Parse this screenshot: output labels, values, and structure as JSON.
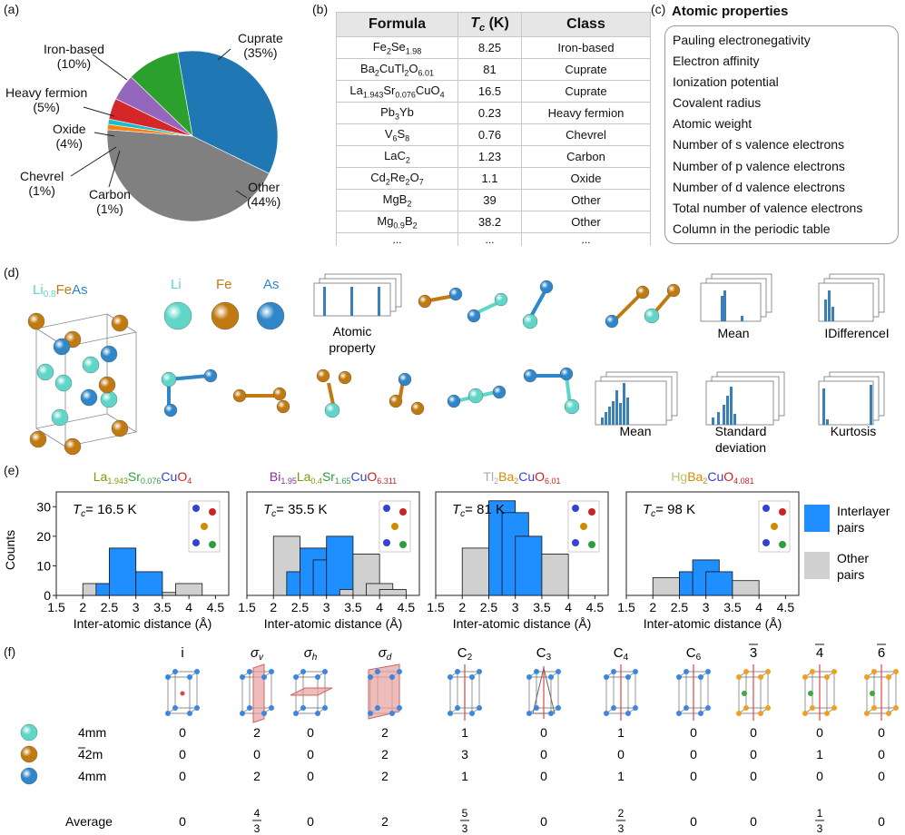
{
  "panels": {
    "a": "(a)",
    "b": "(b)",
    "c": "(c)",
    "d": "(d)",
    "e": "(e)",
    "f": "(f)"
  },
  "chart_data": [
    {
      "type": "pie",
      "title": "",
      "slices": [
        {
          "label": "Cuprate",
          "pct_text": "(35%)",
          "value": 35,
          "color": "#1f77b4"
        },
        {
          "label": "Other",
          "pct_text": "(44%)",
          "value": 44,
          "color": "#808080"
        },
        {
          "label": "Carbon",
          "pct_text": "(1%)",
          "value": 1,
          "color": "#ff7f0e"
        },
        {
          "label": "Chevrel",
          "pct_text": "(1%)",
          "value": 1,
          "color": "#17becf"
        },
        {
          "label": "Oxide",
          "pct_text": "(4%)",
          "value": 4,
          "color": "#d62728"
        },
        {
          "label": "Heavy fermion",
          "pct_text": "(5%)",
          "value": 5,
          "color": "#9467bd"
        },
        {
          "label": "Iron-based",
          "pct_text": "(10%)",
          "value": 10,
          "color": "#2ca02c"
        }
      ]
    },
    {
      "type": "bar",
      "title_parts": [
        [
          "La",
          "#7a9a00",
          false
        ],
        [
          "1.943",
          "#7a9a00",
          true
        ],
        [
          "Sr",
          "#2e9e3e",
          false
        ],
        [
          "0.076",
          "#2e9e3e",
          true
        ],
        [
          "Cu",
          "#3344cc",
          false
        ],
        [
          "O",
          "#cc2222",
          false
        ],
        [
          "4",
          "#cc2222",
          true
        ]
      ],
      "tc": "= 16.5 K",
      "bins": [
        2,
        2.5,
        3,
        3.5,
        4
      ],
      "interlayer": [
        4,
        16,
        0,
        8,
        0
      ],
      "other": [
        4,
        0,
        0,
        0,
        4
      ],
      "ylim": [
        0,
        35
      ],
      "xlim": [
        1.5,
        4.75
      ],
      "xticks": [
        "1.5",
        "2",
        "2.5",
        "3",
        "3.5",
        "4",
        "4.5"
      ],
      "yticks": [
        "0",
        "10",
        "20",
        "30"
      ],
      "xlabel": "Inter-atomic distance (Å)",
      "ylabel": "Counts"
    },
    {
      "type": "bar",
      "title_parts": [
        [
          "Bi",
          "#8a2c9a",
          false
        ],
        [
          "1.95",
          "#8a2c9a",
          true
        ],
        [
          "La",
          "#7a9a00",
          false
        ],
        [
          "0.4",
          "#7a9a00",
          true
        ],
        [
          "Sr",
          "#2e9e3e",
          false
        ],
        [
          "1.65",
          "#2e9e3e",
          true
        ],
        [
          "Cu",
          "#3344cc",
          false
        ],
        [
          "O",
          "#cc2222",
          false
        ],
        [
          "6.311",
          "#cc2222",
          true
        ]
      ],
      "tc": "= 35.5 K",
      "bins": [
        2,
        2.5,
        3,
        3.5,
        4
      ],
      "interlayer": [
        8,
        16,
        12,
        20,
        0
      ],
      "other": [
        20,
        0,
        0,
        2,
        14
      ],
      "bins_fine": [
        2,
        2.25,
        2.5,
        2.75,
        3,
        3.25,
        3.5,
        3.75,
        4,
        4.25
      ],
      "fine_interlayer": [
        0,
        8,
        16,
        12,
        20,
        0,
        0,
        0,
        0,
        0
      ],
      "fine_other": [
        20,
        0,
        0,
        0,
        0,
        2,
        14,
        0,
        4,
        2
      ],
      "ylim": [
        0,
        35
      ],
      "xlim": [
        1.5,
        4.75
      ],
      "xticks": [
        "1.5",
        "2",
        "2.5",
        "3",
        "3.5",
        "4",
        "4.5"
      ],
      "xlabel": "Inter-atomic distance (Å)"
    },
    {
      "type": "bar",
      "title_parts": [
        [
          "Tl",
          "#aaaaaa",
          false
        ],
        [
          "2",
          "#aaaaaa",
          true
        ],
        [
          "Ba",
          "#d08a00",
          false
        ],
        [
          "2",
          "#d08a00",
          true
        ],
        [
          "Cu",
          "#3344cc",
          false
        ],
        [
          "O",
          "#cc2222",
          false
        ],
        [
          "6.01",
          "#cc2222",
          true
        ]
      ],
      "tc": "= 81 K",
      "fine_bins": [
        2,
        2.5,
        2.75,
        3,
        3.25,
        4
      ],
      "fine_interlayer": [
        0,
        32,
        28,
        20,
        0,
        0
      ],
      "fine_other": [
        16,
        0,
        0,
        0,
        0,
        14
      ],
      "ylim": [
        0,
        35
      ],
      "xlim": [
        1.5,
        4.75
      ],
      "xticks": [
        "1.5",
        "2",
        "2.5",
        "3",
        "3.5",
        "4",
        "4.5"
      ],
      "xlabel": "Inter-atomic distance (Å)"
    },
    {
      "type": "bar",
      "title_parts": [
        [
          "Hg",
          "#b8c070",
          false
        ],
        [
          "Ba",
          "#d08a00",
          false
        ],
        [
          "2",
          "#d08a00",
          true
        ],
        [
          "Cu",
          "#3344cc",
          false
        ],
        [
          "O",
          "#cc2222",
          false
        ],
        [
          "4.081",
          "#cc2222",
          true
        ]
      ],
      "tc": "= 98 K",
      "fine_bins": [
        2,
        2.75,
        3,
        3.25,
        4
      ],
      "fine_interlayer": [
        0,
        8,
        12,
        8,
        0
      ],
      "fine_other": [
        6,
        0,
        0,
        0,
        5
      ],
      "ylim": [
        0,
        35
      ],
      "xlim": [
        1.5,
        4.75
      ],
      "xticks": [
        "1.5",
        "2",
        "2.5",
        "3",
        "3.5",
        "4",
        "4.5"
      ],
      "xlabel": "Inter-atomic distance (Å)"
    }
  ],
  "pie_labels": {
    "iron": "Iron-based",
    "iron_pct": "(10%)",
    "heavy": "Heavy fermion",
    "heavy_pct": "(5%)",
    "oxide": "Oxide",
    "oxide_pct": "(4%)",
    "chevrel": "Chevrel",
    "chevrel_pct": "(1%)",
    "carbon": "Carbon",
    "carbon_pct": "(1%)",
    "cuprate": "Cuprate",
    "cuprate_pct": "(35%)",
    "other": "Other",
    "other_pct": "(44%)"
  },
  "table": {
    "headers": [
      "Formula",
      "T",
      "c",
      "(K)",
      "Class"
    ],
    "rows": [
      {
        "f": [
          [
            "Fe",
            false
          ],
          [
            "2",
            true
          ],
          [
            "Se",
            false
          ],
          [
            "1.98",
            true
          ]
        ],
        "tc": "8.25",
        "cls": "Iron-based"
      },
      {
        "f": [
          [
            "Ba",
            false
          ],
          [
            "2",
            true
          ],
          [
            "CuTl",
            false
          ],
          [
            "2",
            true
          ],
          [
            "O",
            false
          ],
          [
            "6.01",
            true
          ]
        ],
        "tc": "81",
        "cls": "Cuprate"
      },
      {
        "f": [
          [
            "La",
            false
          ],
          [
            "1.943",
            true
          ],
          [
            "Sr",
            false
          ],
          [
            "0.076",
            true
          ],
          [
            "CuO",
            false
          ],
          [
            "4",
            true
          ]
        ],
        "tc": "16.5",
        "cls": "Cuprate"
      },
      {
        "f": [
          [
            "Pb",
            false
          ],
          [
            "3",
            true
          ],
          [
            "Yb",
            false
          ]
        ],
        "tc": "0.23",
        "cls": "Heavy fermion"
      },
      {
        "f": [
          [
            "V",
            false
          ],
          [
            "6",
            true
          ],
          [
            "S",
            false
          ],
          [
            "8",
            true
          ]
        ],
        "tc": "0.76",
        "cls": "Chevrel"
      },
      {
        "f": [
          [
            "LaC",
            false
          ],
          [
            "2",
            true
          ]
        ],
        "tc": "1.23",
        "cls": "Carbon"
      },
      {
        "f": [
          [
            "Cd",
            false
          ],
          [
            "2",
            true
          ],
          [
            "Re",
            false
          ],
          [
            "2",
            true
          ],
          [
            "O",
            false
          ],
          [
            "7",
            true
          ]
        ],
        "tc": "1.1",
        "cls": "Oxide"
      },
      {
        "f": [
          [
            "MgB",
            false
          ],
          [
            "2",
            true
          ]
        ],
        "tc": "39",
        "cls": "Other"
      },
      {
        "f": [
          [
            "Mg",
            false
          ],
          [
            "0.9",
            true
          ],
          [
            "B",
            false
          ],
          [
            "2",
            true
          ]
        ],
        "tc": "38.2",
        "cls": "Other"
      }
    ],
    "dots": "..."
  },
  "atomic": {
    "title": "Atomic properties",
    "items": [
      "Pauling electronegativity",
      "Electron affinity",
      "Ionization potential",
      "Covalent radius",
      "Atomic weight",
      "Number of s valence electrons",
      "Number of p valence electrons",
      "Number of d valence electrons",
      "Total number of valence electrons",
      "Column in the periodic table"
    ]
  },
  "d": {
    "formula_li": "Li",
    "formula_sub": "0.8",
    "formula_fe": "Fe",
    "formula_as": "As",
    "li": "Li",
    "fe": "Fe",
    "as": "As",
    "atomic_property": "Atomic\nproperty",
    "mean1": "Mean",
    "diff": "IDifferenceI",
    "mean2": "Mean",
    "std": "Standard\ndeviation",
    "kurt": "Kurtosis",
    "colors": {
      "li": "#5fd6c8",
      "fe": "#c07a10",
      "as": "#2f86c8"
    }
  },
  "e": {
    "legend_inter": "Interlayer\npairs",
    "legend_other": "Other\npairs",
    "tc_label": "T",
    "tc_sub": "c",
    "colors": {
      "inter": "#1f8fff",
      "other": "#d0d0d0"
    }
  },
  "f": {
    "ops": [
      "i",
      "σv",
      "σh",
      "σd",
      "C2",
      "C3",
      "C4",
      "C6",
      "3̄",
      "4̄",
      "6̄"
    ],
    "op_parts": [
      [
        "i",
        ""
      ],
      [
        "σ",
        "v"
      ],
      [
        "σ",
        "h"
      ],
      [
        "σ",
        "d"
      ],
      [
        "C",
        "2"
      ],
      [
        "C",
        "3"
      ],
      [
        "C",
        "4"
      ],
      [
        "C",
        "6"
      ],
      [
        "3",
        ""
      ],
      [
        "4",
        ""
      ],
      [
        "6",
        ""
      ]
    ],
    "op_bar": [
      false,
      false,
      false,
      false,
      false,
      false,
      false,
      false,
      true,
      true,
      true
    ],
    "rows": [
      {
        "label": "4mm",
        "bar": false,
        "atom": "li",
        "vals": [
          "0",
          "2",
          "0",
          "2",
          "1",
          "0",
          "1",
          "0",
          "0",
          "0",
          "0"
        ]
      },
      {
        "label": "42m",
        "bar": true,
        "atom": "fe",
        "vals": [
          "0",
          "0",
          "0",
          "2",
          "3",
          "0",
          "0",
          "0",
          "0",
          "1",
          "0"
        ]
      },
      {
        "label": "4mm",
        "bar": false,
        "atom": "as",
        "vals": [
          "0",
          "2",
          "0",
          "2",
          "1",
          "0",
          "1",
          "0",
          "0",
          "0",
          "0"
        ]
      }
    ],
    "avg_label": "Average",
    "avg": [
      [
        "0",
        ""
      ],
      [
        "4",
        "3"
      ],
      [
        "0",
        ""
      ],
      [
        "2",
        ""
      ],
      [
        "5",
        "3"
      ],
      [
        "0",
        ""
      ],
      [
        "2",
        "3"
      ],
      [
        "0",
        ""
      ],
      [
        "0",
        ""
      ],
      [
        "1",
        "3"
      ],
      [
        "0",
        ""
      ]
    ]
  }
}
